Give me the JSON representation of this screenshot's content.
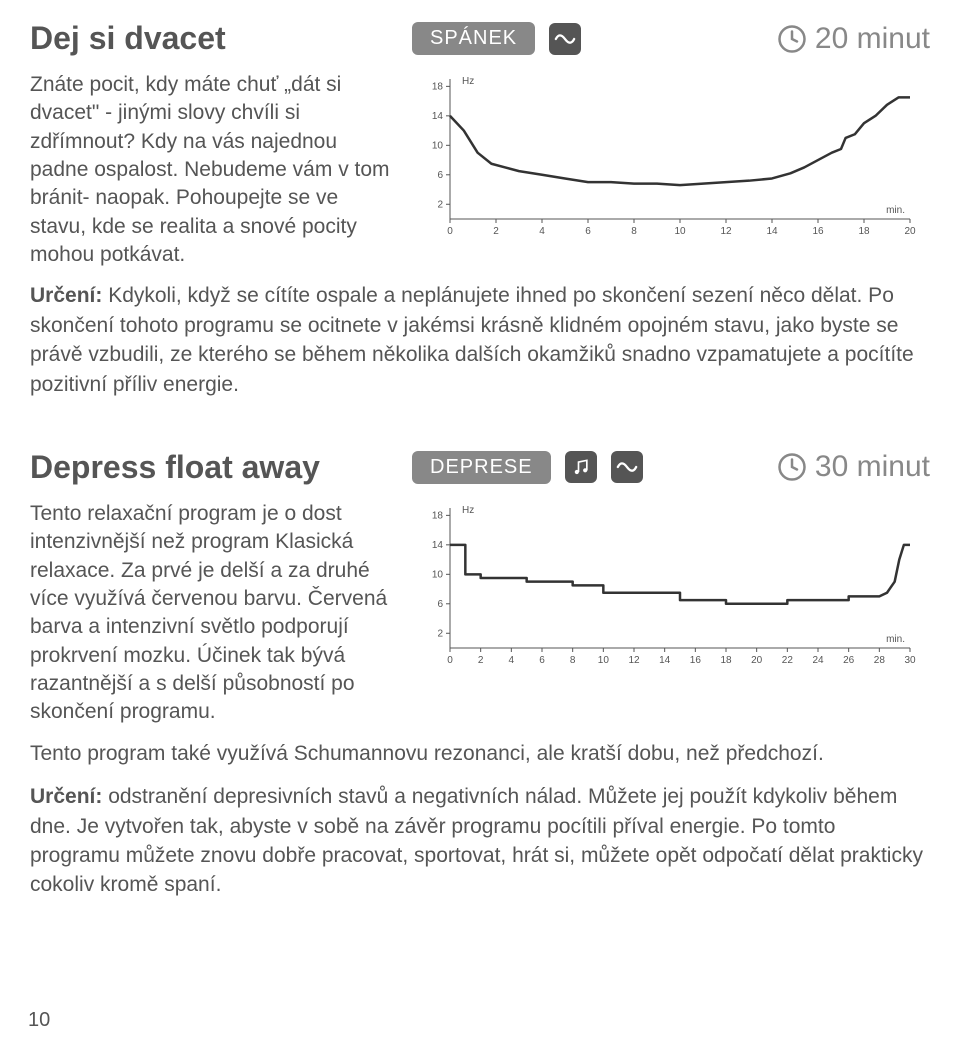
{
  "page_number": "10",
  "clock_color": "#888",
  "badge_bg": "#888888",
  "icon_bg": "#555555",
  "sections": [
    {
      "title": "Dej si dvacet",
      "badge": "SPÁNEK",
      "icons": [
        "wave"
      ],
      "duration": "20 minut",
      "intro": "Znáte pocit, kdy máte chuť „dát si dvacet\" - jinými slovy chvíli si zdřímnout? Kdy na vás najednou padne ospalost. Nebudeme vám v tom bránit- naopak. Pohoupejte se ve stavu, kde se realita a snové pocity mohou potkávat.",
      "chart": {
        "type": "line-step",
        "y_label": "Hz",
        "x_label": "min.",
        "y_ticks": [
          18,
          14,
          10,
          6,
          2
        ],
        "x_ticks": [
          0,
          2,
          4,
          6,
          8,
          10,
          12,
          14,
          16,
          18,
          20
        ],
        "xlim": [
          0,
          20
        ],
        "ylim": [
          0,
          19
        ],
        "line_color": "#333333",
        "line_width": 2.5,
        "tick_fontsize": 10,
        "points": [
          [
            0,
            14
          ],
          [
            0.6,
            12
          ],
          [
            1.2,
            9
          ],
          [
            1.8,
            7.5
          ],
          [
            2.4,
            7
          ],
          [
            3,
            6.5
          ],
          [
            4,
            6
          ],
          [
            5,
            5.5
          ],
          [
            6,
            5
          ],
          [
            7,
            5
          ],
          [
            8,
            4.8
          ],
          [
            9,
            4.8
          ],
          [
            10,
            4.6
          ],
          [
            11,
            4.8
          ],
          [
            12,
            5
          ],
          [
            13,
            5.2
          ],
          [
            14,
            5.5
          ],
          [
            14.8,
            6.2
          ],
          [
            15.4,
            7
          ],
          [
            16,
            8
          ],
          [
            16.6,
            9
          ],
          [
            17,
            9.5
          ],
          [
            17.2,
            11
          ],
          [
            17.6,
            11.5
          ],
          [
            18,
            13
          ],
          [
            18.5,
            14
          ],
          [
            19,
            15.5
          ],
          [
            19.5,
            16.5
          ],
          [
            20,
            16.5
          ]
        ]
      },
      "urceni_label": "Určení:",
      "urceni_text": " Kdykoli, když se cítíte ospale a neplánujete ihned po skončení sezení něco dělat. Po skončení tohoto programu se ocitnete v jakémsi krásně klidném opojném stavu, jako byste se právě vzbudili, ze kterého se během několika dalších okamžiků snadno vzpamatujete a pocítíte pozitivní příliv energie."
    },
    {
      "title": "Depress float away",
      "badge": "DEPRESE",
      "icons": [
        "music",
        "wave"
      ],
      "duration": "30 minut",
      "intro": "Tento relaxační program je o dost intenzivnější než program Klasická relaxace. Za prvé je delší a za druhé více využívá červenou barvu. Červená barva a intenzivní světlo podporují prokrvení mozku. Účinek tak bývá razantnější a s delší působností po skončení programu.",
      "intro_after": "Tento program také využívá Schumannovu rezonanci, ale kratší dobu, než předchozí.",
      "chart": {
        "type": "line-step",
        "y_label": "Hz",
        "x_label": "min.",
        "y_ticks": [
          18,
          14,
          10,
          6,
          2
        ],
        "x_ticks": [
          0,
          2,
          4,
          6,
          8,
          10,
          12,
          14,
          16,
          18,
          20,
          22,
          24,
          26,
          28,
          30
        ],
        "xlim": [
          0,
          30
        ],
        "ylim": [
          0,
          19
        ],
        "line_color": "#333333",
        "line_width": 2.5,
        "tick_fontsize": 10,
        "points": [
          [
            0,
            14
          ],
          [
            1,
            14
          ],
          [
            1,
            10
          ],
          [
            2,
            10
          ],
          [
            2,
            9.5
          ],
          [
            5,
            9.5
          ],
          [
            5,
            9
          ],
          [
            8,
            9
          ],
          [
            8,
            8.5
          ],
          [
            10,
            8.5
          ],
          [
            10,
            7.5
          ],
          [
            15,
            7.5
          ],
          [
            15,
            6.5
          ],
          [
            18,
            6.5
          ],
          [
            18,
            6
          ],
          [
            22,
            6
          ],
          [
            22,
            6.5
          ],
          [
            26,
            6.5
          ],
          [
            26,
            7
          ],
          [
            28,
            7
          ],
          [
            28.5,
            7.5
          ],
          [
            29,
            9
          ],
          [
            29.3,
            12
          ],
          [
            29.6,
            14
          ],
          [
            30,
            14
          ]
        ]
      },
      "urceni_label": "Určení:",
      "urceni_text": " odstranění depresivních stavů a negativních nálad. Můžete jej použít kdykoliv během dne. Je vytvořen tak, abyste v sobě na závěr programu pocítili příval energie. Po tomto programu můžete znovu dobře pracovat, sportovat, hrát si, můžete opět odpočatí dělat prakticky cokoliv kromě spaní."
    }
  ]
}
